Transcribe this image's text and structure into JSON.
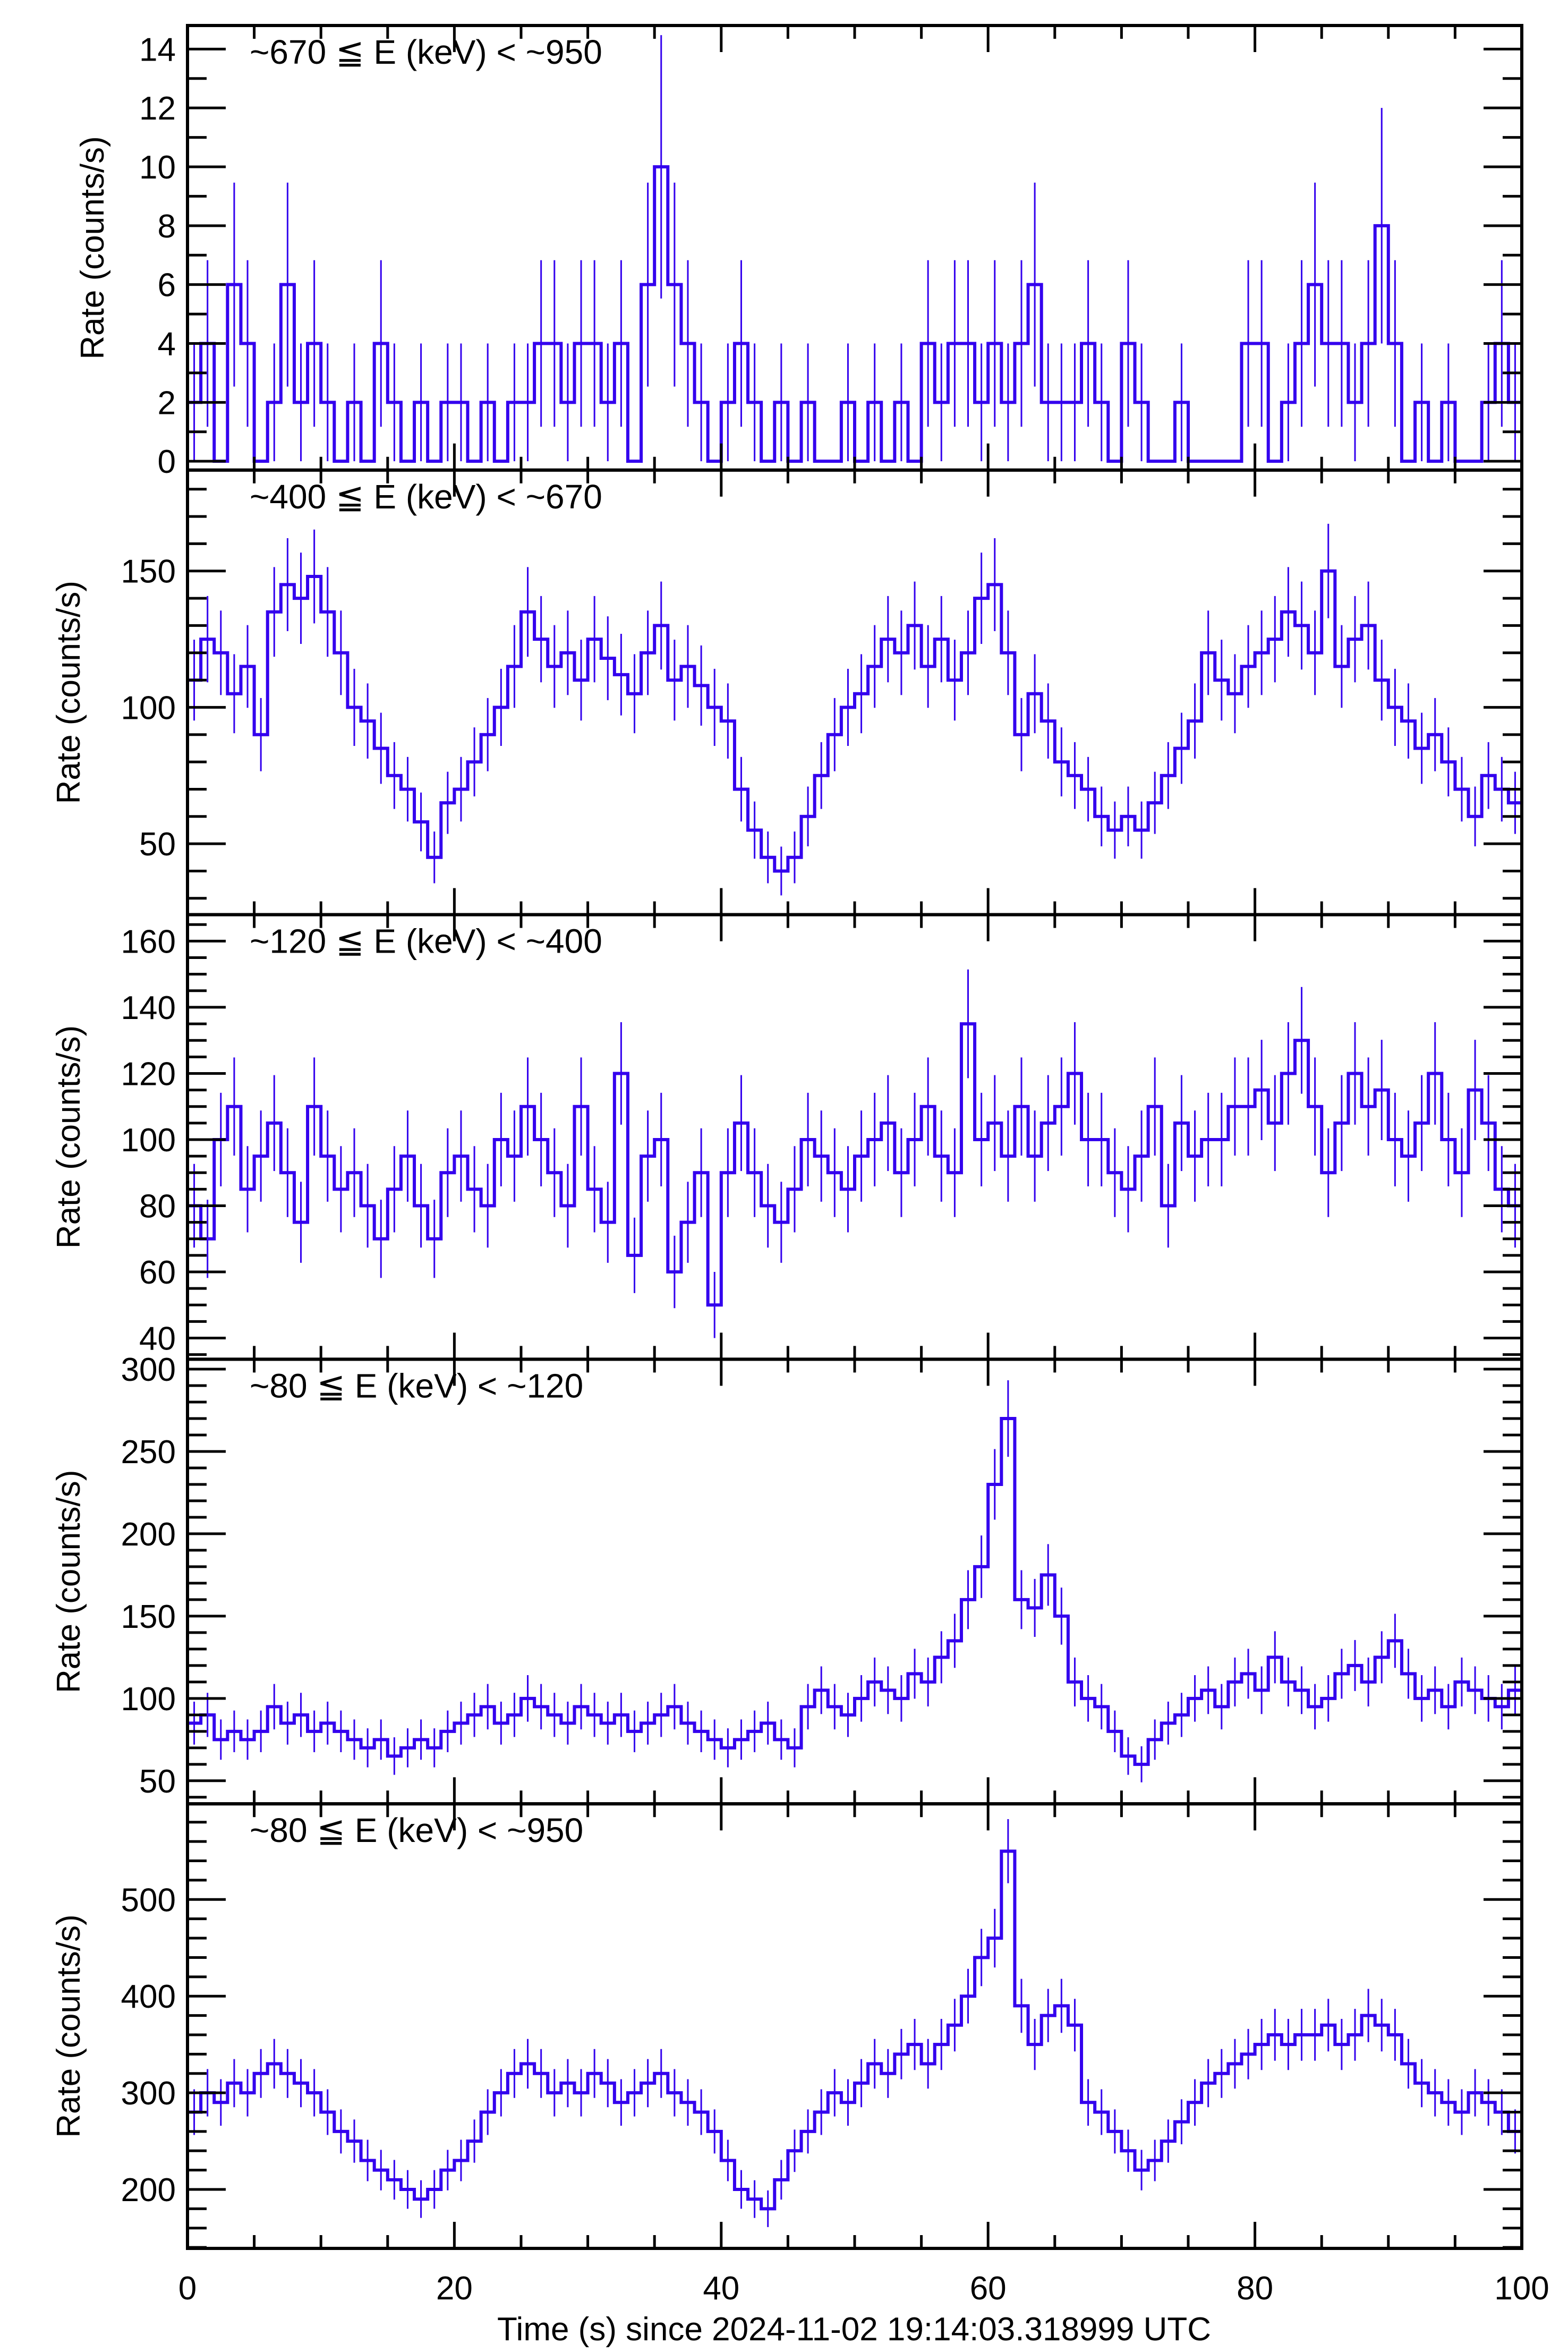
{
  "chart_data": {
    "type": "line",
    "style": "step-histogram with error bars",
    "line_color": "#3300ee",
    "xlabel": "Time (s) since 2024-11-02 19:14:03.318999 UTC",
    "xlim": [
      0,
      100
    ],
    "xticks": [
      0,
      20,
      40,
      60,
      80,
      100
    ],
    "xtick_labels": [
      "0",
      "20",
      "40",
      "60",
      "80",
      "100"
    ],
    "x_minor_step": 5,
    "bin_width": 1,
    "panels": [
      {
        "title": "~670 ≦ E (keV) < ~950",
        "ylabel": "Rate (counts/s)",
        "ylim": [
          -0.3,
          14.8
        ],
        "yticks": [
          0,
          2,
          4,
          6,
          8,
          10,
          12,
          14
        ],
        "y_minor_step": 1,
        "values": [
          2,
          4,
          0,
          6,
          4,
          0,
          2,
          6,
          2,
          4,
          2,
          0,
          2,
          0,
          4,
          2,
          0,
          2,
          0,
          2,
          2,
          0,
          2,
          0,
          2,
          2,
          4,
          4,
          2,
          4,
          4,
          2,
          4,
          0,
          6,
          10,
          6,
          4,
          2,
          0,
          2,
          4,
          2,
          0,
          2,
          0,
          2,
          0,
          0,
          2,
          0,
          2,
          0,
          2,
          0,
          4,
          2,
          4,
          4,
          2,
          4,
          2,
          4,
          6,
          2,
          2,
          2,
          4,
          2,
          0,
          4,
          2,
          0,
          0,
          2,
          0,
          0,
          0,
          0,
          4,
          4,
          0,
          2,
          4,
          6,
          4,
          4,
          2,
          4,
          8,
          4,
          0,
          2,
          0,
          2,
          0,
          0,
          2,
          4,
          2
        ]
      },
      {
        "title": "~400 ≦ E (keV) < ~670",
        "ylabel": "Rate (counts/s)",
        "ylim": [
          24,
          187
        ],
        "yticks": [
          50,
          100,
          150
        ],
        "y_minor_step": 10,
        "values": [
          110,
          125,
          120,
          105,
          115,
          90,
          135,
          145,
          140,
          148,
          135,
          120,
          100,
          95,
          85,
          75,
          70,
          58,
          45,
          65,
          70,
          80,
          90,
          100,
          115,
          135,
          125,
          115,
          120,
          110,
          125,
          118,
          112,
          105,
          120,
          130,
          110,
          115,
          108,
          100,
          95,
          70,
          55,
          45,
          40,
          45,
          60,
          75,
          90,
          100,
          105,
          115,
          125,
          120,
          130,
          115,
          125,
          110,
          120,
          140,
          145,
          120,
          90,
          105,
          95,
          80,
          75,
          70,
          60,
          55,
          60,
          55,
          65,
          75,
          85,
          95,
          120,
          110,
          105,
          115,
          120,
          125,
          135,
          130,
          120,
          150,
          115,
          125,
          130,
          110,
          100,
          95,
          85,
          90,
          80,
          70,
          60,
          75,
          70,
          65
        ]
      },
      {
        "title": "~120 ≦ E (keV) < ~400",
        "ylabel": "Rate (counts/s)",
        "ylim": [
          33.6,
          168
        ],
        "yticks": [
          40,
          60,
          80,
          100,
          120,
          140,
          160
        ],
        "y_minor_step": 5,
        "values": [
          80,
          70,
          100,
          110,
          85,
          95,
          105,
          90,
          75,
          110,
          95,
          85,
          90,
          80,
          70,
          85,
          95,
          80,
          70,
          90,
          95,
          85,
          80,
          100,
          95,
          110,
          100,
          90,
          80,
          110,
          85,
          75,
          120,
          65,
          95,
          100,
          60,
          75,
          90,
          50,
          90,
          105,
          90,
          80,
          75,
          85,
          100,
          95,
          90,
          85,
          95,
          100,
          105,
          90,
          100,
          110,
          95,
          90,
          135,
          100,
          105,
          95,
          110,
          95,
          105,
          110,
          120,
          100,
          100,
          90,
          85,
          95,
          110,
          80,
          105,
          95,
          100,
          100,
          110,
          110,
          115,
          105,
          120,
          130,
          110,
          90,
          105,
          120,
          110,
          115,
          100,
          95,
          105,
          120,
          100,
          90,
          115,
          105,
          85,
          80
        ]
      },
      {
        "title": "~80 ≦ E (keV) < ~120",
        "ylabel": "Rate (counts/s)",
        "ylim": [
          36,
          306
        ],
        "yticks": [
          50,
          100,
          150,
          200,
          250,
          300
        ],
        "y_minor_step": 10,
        "values": [
          85,
          90,
          75,
          80,
          75,
          80,
          95,
          85,
          90,
          80,
          85,
          80,
          75,
          70,
          75,
          65,
          70,
          75,
          70,
          80,
          85,
          90,
          95,
          85,
          90,
          100,
          95,
          90,
          85,
          95,
          90,
          85,
          90,
          80,
          85,
          90,
          95,
          85,
          80,
          75,
          70,
          75,
          80,
          85,
          75,
          70,
          95,
          105,
          95,
          90,
          100,
          110,
          105,
          100,
          115,
          110,
          125,
          135,
          160,
          180,
          230,
          270,
          160,
          155,
          175,
          150,
          110,
          100,
          95,
          80,
          65,
          60,
          75,
          85,
          90,
          100,
          105,
          95,
          110,
          115,
          105,
          125,
          110,
          105,
          95,
          100,
          115,
          120,
          110,
          125,
          135,
          115,
          100,
          105,
          95,
          110,
          105,
          100,
          95,
          105
        ]
      },
      {
        "title": "~80 ≦ E (keV) < ~950",
        "ylabel": "Rate (counts/s)",
        "ylim": [
          139,
          599
        ],
        "yticks": [
          200,
          300,
          400,
          500
        ],
        "y_minor_step": 20,
        "values": [
          280,
          300,
          290,
          310,
          300,
          320,
          330,
          320,
          310,
          300,
          280,
          260,
          250,
          230,
          220,
          210,
          200,
          190,
          200,
          220,
          230,
          250,
          280,
          300,
          320,
          330,
          320,
          300,
          310,
          300,
          320,
          310,
          290,
          300,
          310,
          320,
          300,
          290,
          280,
          260,
          230,
          200,
          190,
          180,
          210,
          240,
          260,
          280,
          300,
          290,
          310,
          330,
          320,
          340,
          350,
          330,
          350,
          370,
          400,
          440,
          460,
          550,
          390,
          350,
          380,
          390,
          370,
          290,
          280,
          260,
          240,
          220,
          230,
          250,
          270,
          290,
          310,
          320,
          330,
          340,
          350,
          360,
          350,
          360,
          360,
          370,
          350,
          360,
          380,
          370,
          360,
          330,
          310,
          300,
          290,
          280,
          300,
          290,
          280,
          260
        ]
      }
    ]
  }
}
